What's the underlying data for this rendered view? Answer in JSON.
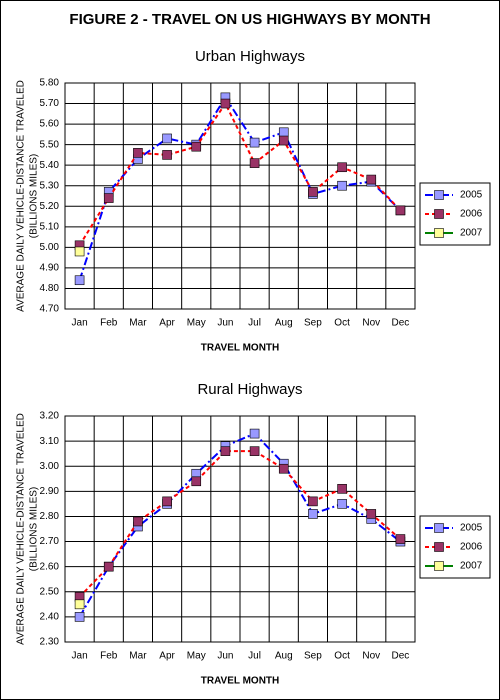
{
  "title": "FIGURE 2 - TRAVEL ON US HIGHWAYS BY MONTH",
  "chart_data": [
    {
      "type": "line",
      "title": "Urban Highways",
      "ylabel": [
        "AVERAGE DAILY VEHICLE-DISTANCE TRAVELED",
        "(BILLIONS MILES)"
      ],
      "xlabel": "TRAVEL MONTH",
      "categories": [
        "Jan",
        "Feb",
        "Mar",
        "Apr",
        "May",
        "Jun",
        "Jul",
        "Aug",
        "Sep",
        "Oct",
        "Nov",
        "Dec"
      ],
      "series": [
        {
          "name": "2005",
          "color": "#0000ff",
          "marker_color": "#9999ff",
          "values": [
            4.84,
            5.27,
            5.43,
            5.53,
            5.5,
            5.73,
            5.51,
            5.56,
            5.26,
            5.3,
            5.32,
            5.18
          ]
        },
        {
          "name": "2006",
          "color": "#ff0000",
          "marker_color": "#993366",
          "values": [
            5.01,
            5.24,
            5.46,
            5.45,
            5.49,
            5.7,
            5.41,
            5.52,
            5.27,
            5.39,
            5.33,
            5.18
          ]
        },
        {
          "name": "2007",
          "color": "#008000",
          "marker_color": "#ffff99",
          "values": [
            4.98,
            null,
            null,
            null,
            null,
            null,
            null,
            null,
            null,
            null,
            null,
            null
          ]
        }
      ],
      "ylim": [
        4.7,
        5.8
      ],
      "yticks": [
        {
          "value": 4.7,
          "label": "4.70"
        },
        {
          "value": 4.8,
          "label": "4.80"
        },
        {
          "value": 4.9,
          "label": "4.90"
        },
        {
          "value": 5.0,
          "label": "5.00"
        },
        {
          "value": 5.1,
          "label": "5.10"
        },
        {
          "value": 5.2,
          "label": "5.20"
        },
        {
          "value": 5.3,
          "label": "5.30"
        },
        {
          "value": 5.4,
          "label": "5.40"
        },
        {
          "value": 5.5,
          "label": "5.50"
        },
        {
          "value": 5.6,
          "label": "5.60"
        },
        {
          "value": 5.7,
          "label": "5.70"
        },
        {
          "value": 5.8,
          "label": "5.80"
        }
      ],
      "grid": true,
      "legend": "right"
    },
    {
      "type": "line",
      "title": "Rural Highways",
      "ylabel": [
        "AVERAGE DAILY VEHICLE-DISTANCE TRAVELED",
        "(BILLIONS MILES)"
      ],
      "xlabel": "TRAVEL MONTH",
      "categories": [
        "Jan",
        "Feb",
        "Mar",
        "Apr",
        "May",
        "Jun",
        "Jul",
        "Aug",
        "Sep",
        "Oct",
        "Nov",
        "Dec"
      ],
      "series": [
        {
          "name": "2005",
          "color": "#0000ff",
          "marker_color": "#9999ff",
          "values": [
            2.4,
            2.6,
            2.76,
            2.85,
            2.97,
            3.08,
            3.13,
            3.01,
            2.81,
            2.85,
            2.79,
            2.7
          ]
        },
        {
          "name": "2006",
          "color": "#ff0000",
          "marker_color": "#993366",
          "values": [
            2.48,
            2.6,
            2.78,
            2.86,
            2.94,
            3.06,
            3.06,
            2.99,
            2.86,
            2.91,
            2.81,
            2.71
          ]
        },
        {
          "name": "2007",
          "color": "#008000",
          "marker_color": "#ffff99",
          "values": [
            2.45,
            null,
            null,
            null,
            null,
            null,
            null,
            null,
            null,
            null,
            null,
            null
          ]
        }
      ],
      "ylim": [
        2.3,
        3.2
      ],
      "yticks": [
        {
          "value": 2.3,
          "label": "2.30"
        },
        {
          "value": 2.4,
          "label": "2.40"
        },
        {
          "value": 2.5,
          "label": "2.50"
        },
        {
          "value": 2.6,
          "label": "2.60"
        },
        {
          "value": 2.7,
          "label": "2.70"
        },
        {
          "value": 2.8,
          "label": "2.80"
        },
        {
          "value": 2.9,
          "label": "2.90"
        },
        {
          "value": 3.0,
          "label": "3.00"
        },
        {
          "value": 3.1,
          "label": "3.10"
        },
        {
          "value": 3.2,
          "label": "3.20"
        }
      ],
      "grid": true,
      "legend": "right"
    }
  ]
}
